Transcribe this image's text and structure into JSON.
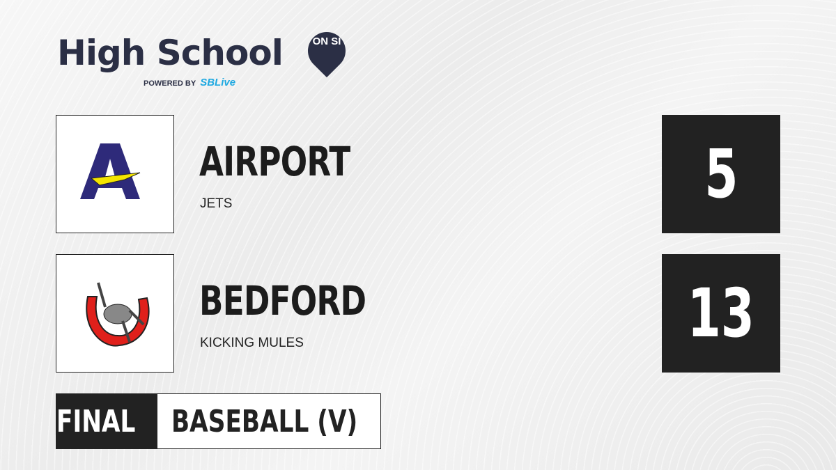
{
  "brand": {
    "title": "High School",
    "pin": "ON SI",
    "powered_by": "POWERED BY",
    "partner": "SBLive"
  },
  "teams": [
    {
      "name": "AIRPORT",
      "mascot": "JETS",
      "score": "5",
      "logo_color": "#2e2a7a"
    },
    {
      "name": "BEDFORD",
      "mascot": "KICKING MULES",
      "score": "13",
      "logo_color": "#e0201b"
    }
  ],
  "game": {
    "status": "FINAL",
    "sport": "BASEBALL (V)"
  }
}
